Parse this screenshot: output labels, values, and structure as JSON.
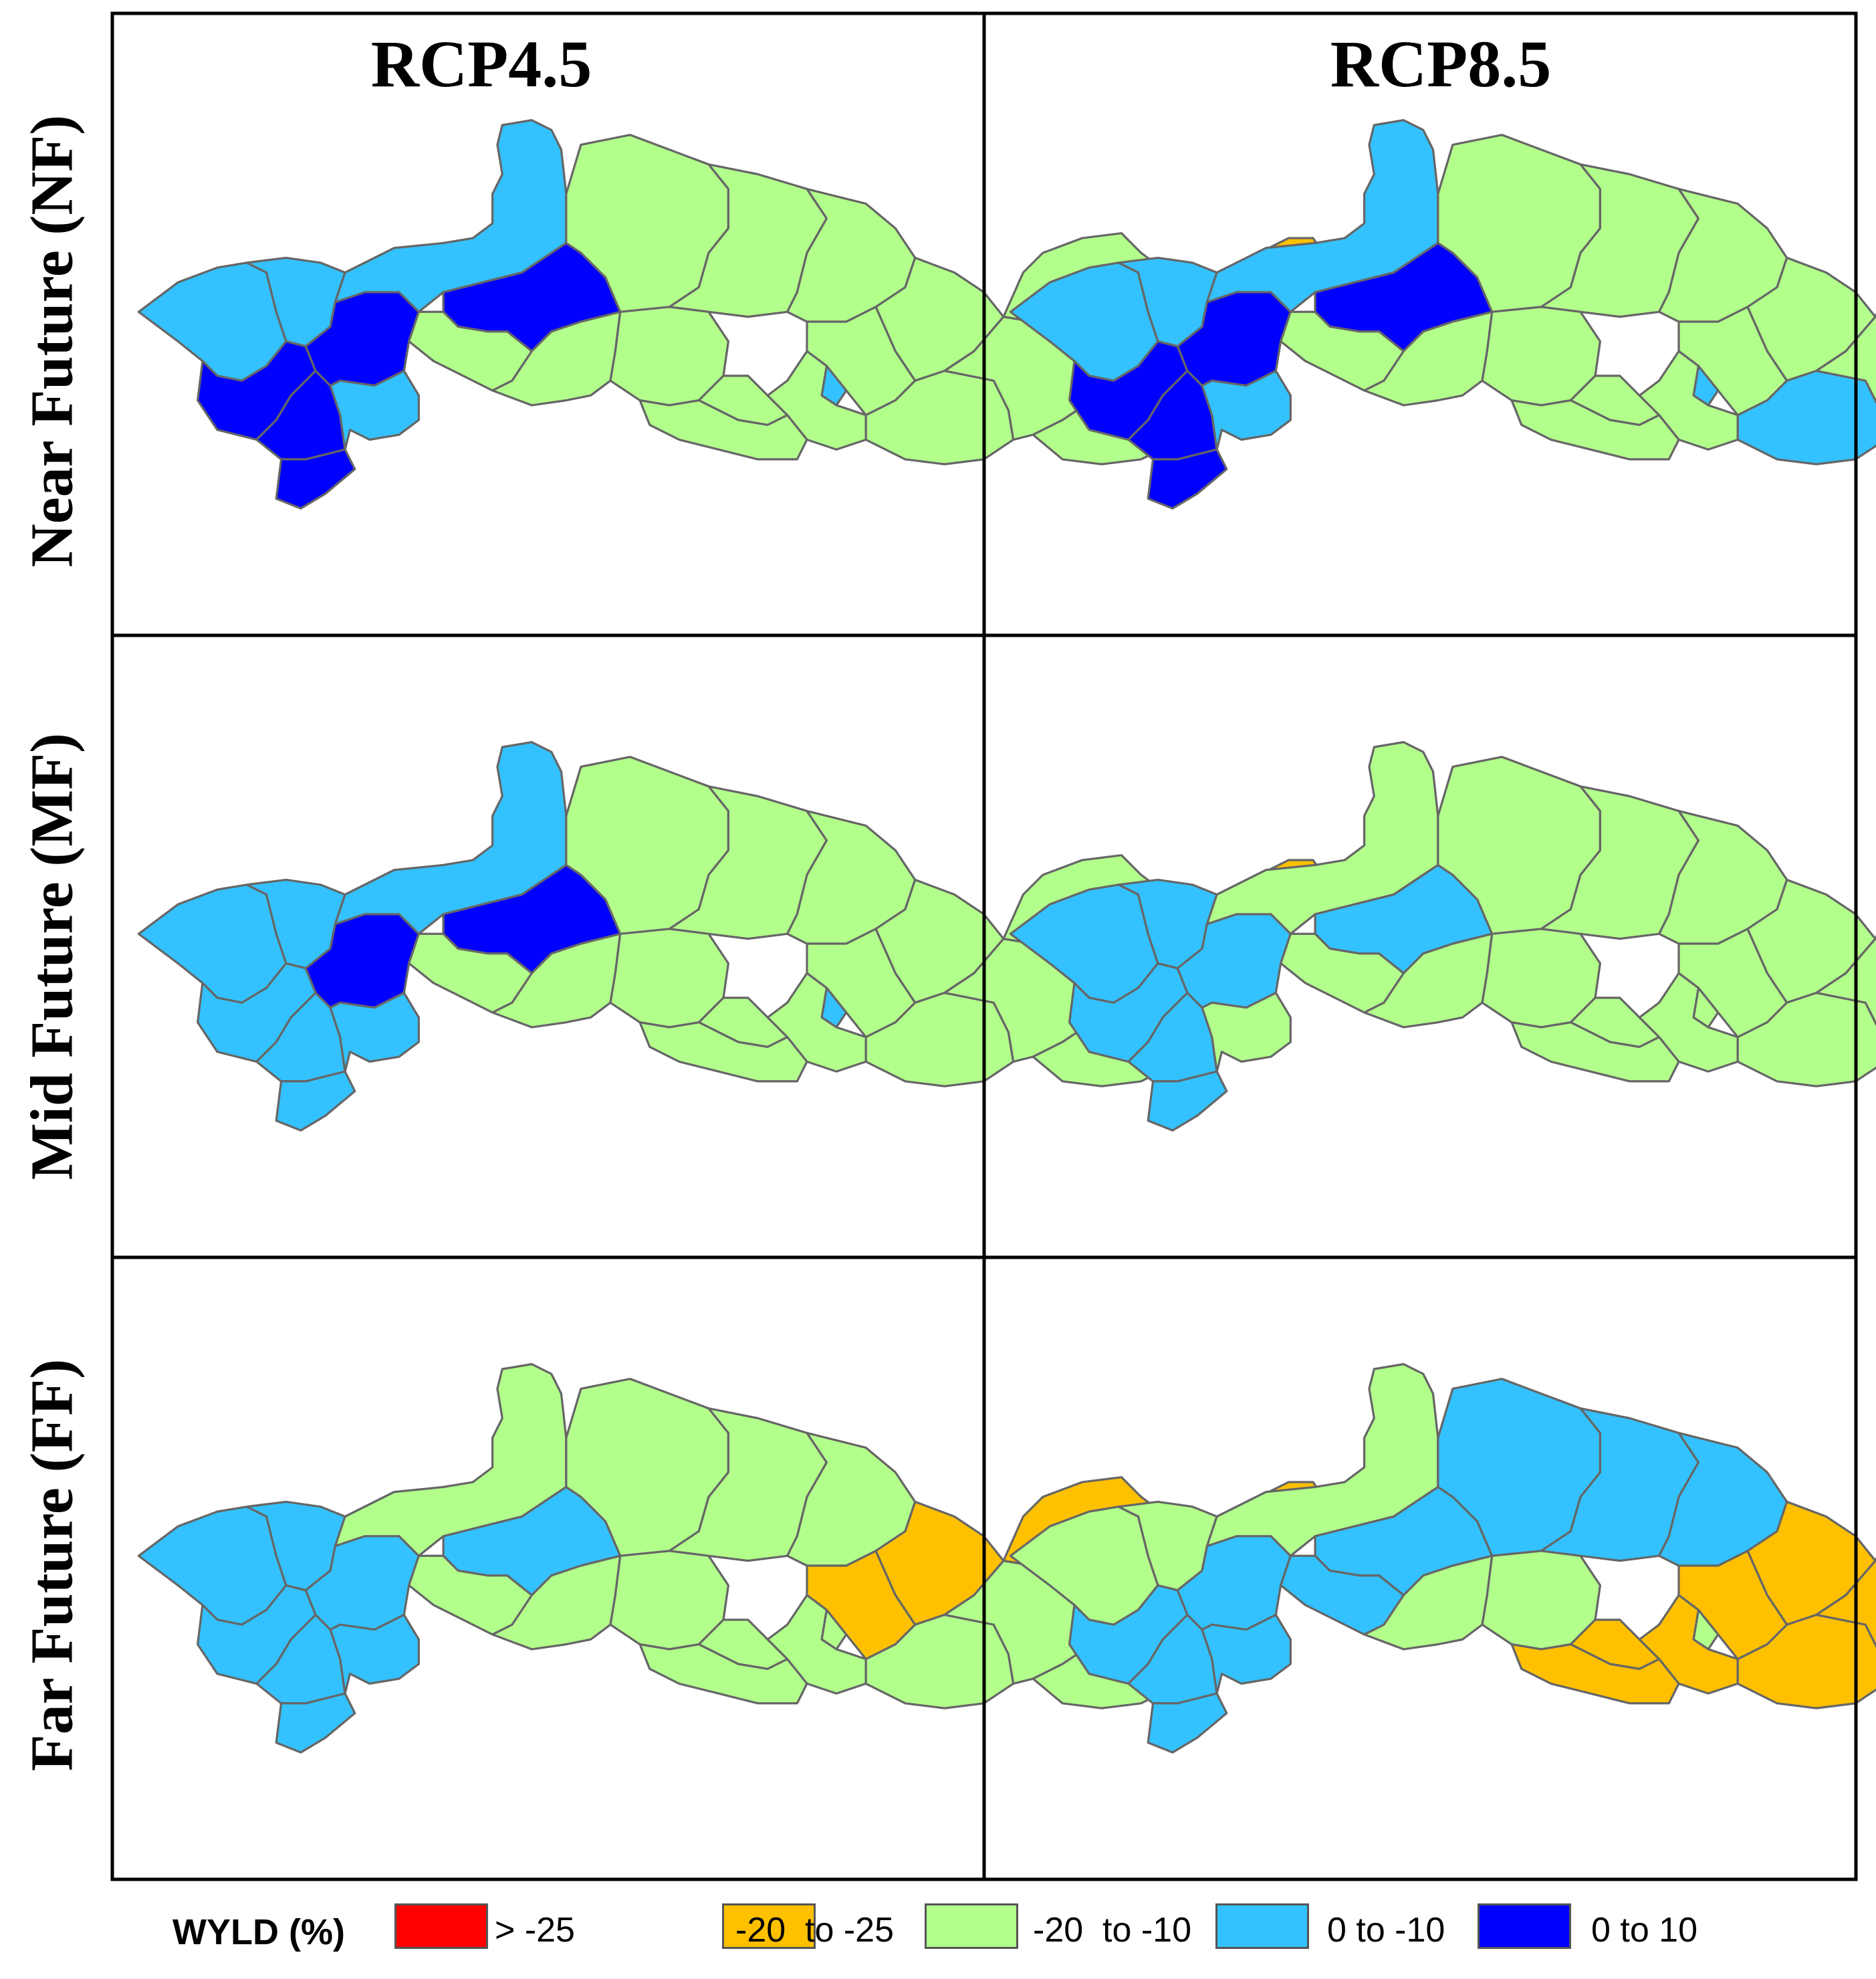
{
  "figure": {
    "columns": [
      "RCP4.5",
      "RCP8.5"
    ],
    "rows": [
      "Near Future (NF)",
      "Mid Future (MF)",
      "Far Future (FF)"
    ]
  },
  "legend": {
    "title": "WYLD (%)",
    "classes": [
      {
        "id": "c1",
        "label": "> -25",
        "color": "#ff0000"
      },
      {
        "id": "c2",
        "label": "-20  to -25",
        "color": "#ffc000"
      },
      {
        "id": "c3",
        "label": "-20  to -10",
        "color": "#b3ff8c"
      },
      {
        "id": "c4",
        "label": "0 to -10",
        "color": "#33c2ff"
      },
      {
        "id": "c5",
        "label": "0 to 10",
        "color": "#0000ff"
      }
    ]
  },
  "map_data": {
    "border_color": "#666666",
    "sub_basins": [
      "A",
      "B",
      "C",
      "D",
      "E",
      "F",
      "G",
      "H",
      "I",
      "J",
      "K",
      "L",
      "M",
      "N",
      "O",
      "P",
      "Q",
      "R",
      "S",
      "T",
      "U",
      "V",
      "W",
      "X",
      "Y",
      "Z",
      "AA",
      "AB",
      "AC"
    ],
    "panels": {
      "rcp45_nf": {
        "A": "c4",
        "B": "c4",
        "C": "c5",
        "D": "c5",
        "E": "c5",
        "F": "c5",
        "G": "c4",
        "H": "c4",
        "I": "c5",
        "J": "c3",
        "K": "c3",
        "L": "c3",
        "M": "c3",
        "N": "c3",
        "O": "c3",
        "P": "c3",
        "Q": "c3",
        "R": "c4",
        "S": "c3",
        "T": "c3",
        "U": "c3",
        "V": "c3",
        "W": "c3",
        "X": "c3",
        "Y": "c3",
        "Z": "c3",
        "AA": "c3",
        "AB": "c2",
        "AC": "c3"
      },
      "rcp85_nf": {
        "A": "c4",
        "B": "c4",
        "C": "c5",
        "D": "c5",
        "E": "c5",
        "F": "c5",
        "G": "c4",
        "H": "c4",
        "I": "c5",
        "J": "c3",
        "K": "c3",
        "L": "c3",
        "M": "c3",
        "N": "c3",
        "O": "c3",
        "P": "c3",
        "Q": "c3",
        "R": "c4",
        "S": "c3",
        "T": "c3",
        "U": "c4",
        "V": "c3",
        "W": "c3",
        "X": "c3",
        "Y": "c3",
        "Z": "c3",
        "AA": "c3",
        "AB": "c3",
        "AC": "c3"
      },
      "rcp45_mf": {
        "A": "c4",
        "B": "c4",
        "C": "c4",
        "D": "c4",
        "E": "c4",
        "F": "c5",
        "G": "c4",
        "H": "c4",
        "I": "c5",
        "J": "c3",
        "K": "c3",
        "L": "c3",
        "M": "c3",
        "N": "c3",
        "O": "c3",
        "P": "c3",
        "Q": "c3",
        "R": "c4",
        "S": "c3",
        "T": "c3",
        "U": "c3",
        "V": "c3",
        "W": "c3",
        "X": "c3",
        "Y": "c3",
        "Z": "c3",
        "AA": "c3",
        "AB": "c2",
        "AC": "c3"
      },
      "rcp85_mf": {
        "A": "c4",
        "B": "c4",
        "C": "c4",
        "D": "c4",
        "E": "c4",
        "F": "c4",
        "G": "c3",
        "H": "c3",
        "I": "c4",
        "J": "c3",
        "K": "c3",
        "L": "c3",
        "M": "c3",
        "N": "c3",
        "O": "c3",
        "P": "c3",
        "Q": "c3",
        "R": "c3",
        "S": "c3",
        "T": "c3",
        "U": "c3",
        "V": "c3",
        "W": "c3",
        "X": "c2",
        "Y": "c2",
        "Z": "c2",
        "AA": "c2",
        "AB": "c2",
        "AC": "c3"
      },
      "rcp45_ff": {
        "A": "c4",
        "B": "c4",
        "C": "c4",
        "D": "c4",
        "E": "c4",
        "F": "c4",
        "G": "c4",
        "H": "c3",
        "I": "c4",
        "J": "c3",
        "K": "c3",
        "L": "c3",
        "M": "c3",
        "N": "c3",
        "O": "c3",
        "P": "c2",
        "Q": "c2",
        "R": "c3",
        "S": "c3",
        "T": "c3",
        "U": "c3",
        "V": "c3",
        "W": "c3",
        "X": "c2",
        "Y": "c2",
        "Z": "c2",
        "AA": "c2",
        "AB": "c2",
        "AC": "c3"
      },
      "rcp85_ff": {
        "A": "c3",
        "B": "c3",
        "C": "c4",
        "D": "c4",
        "E": "c4",
        "F": "c4",
        "G": "c4",
        "H": "c3",
        "I": "c4",
        "J": "c4",
        "K": "c4",
        "L": "c4",
        "M": "c4",
        "N": "c3",
        "O": "c3",
        "P": "c2",
        "Q": "c2",
        "R": "c3",
        "S": "c2",
        "T": "c2",
        "U": "c2",
        "V": "c2",
        "W": "c2",
        "X": "c2",
        "Y": "c2",
        "Z": "c2",
        "AA": "c2",
        "AB": "c1",
        "AC": "c2"
      }
    }
  }
}
